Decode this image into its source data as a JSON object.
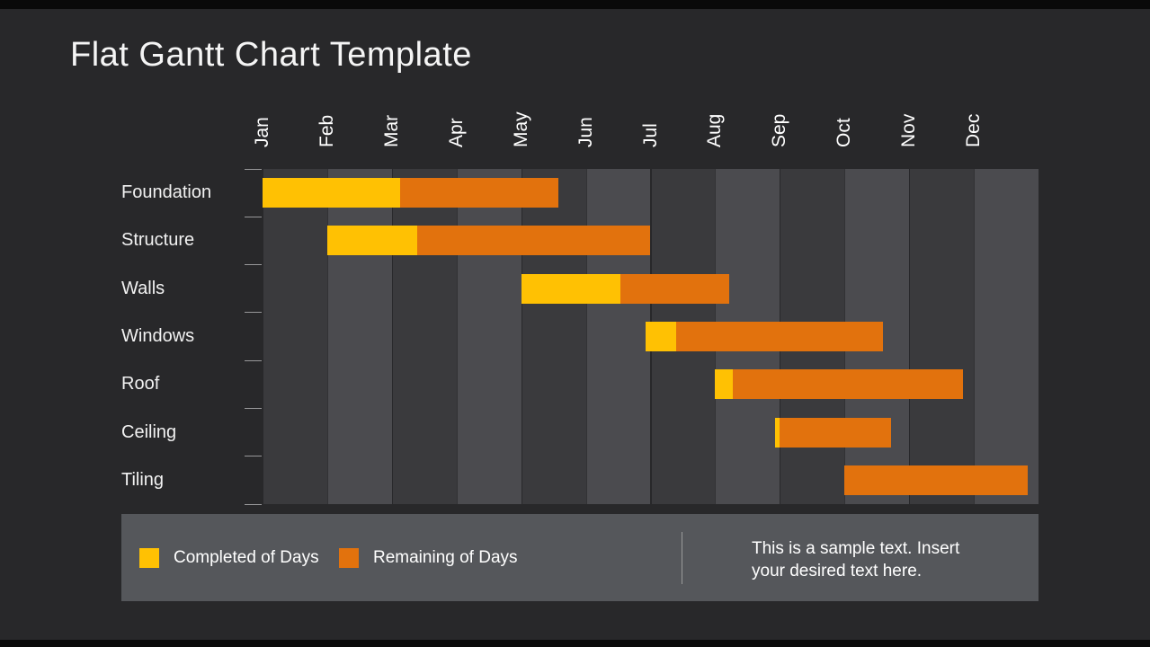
{
  "slide": {
    "title": "Flat Gantt Chart Template"
  },
  "chart_data": {
    "type": "gantt-bar",
    "title": "Flat Gantt Chart Template",
    "x_axis": {
      "unit": "months",
      "range": [
        "Jan",
        "Dec"
      ],
      "gridbands": "alternating"
    },
    "months": [
      "Jan",
      "Feb",
      "Mar",
      "Apr",
      "May",
      "Jun",
      "Jul",
      "Aug",
      "Sep",
      "Oct",
      "Nov",
      "Dec"
    ],
    "tasks": [
      {
        "name": "Foundation",
        "start": 0.0,
        "completed": 2.13,
        "remaining": 2.45
      },
      {
        "name": "Structure",
        "start": 1.0,
        "completed": 1.39,
        "remaining": 3.6
      },
      {
        "name": "Walls",
        "start": 4.0,
        "completed": 1.54,
        "remaining": 1.67
      },
      {
        "name": "Windows",
        "start": 5.93,
        "completed": 0.46,
        "remaining": 3.21
      },
      {
        "name": "Roof",
        "start": 7.0,
        "completed": 0.27,
        "remaining": 3.56
      },
      {
        "name": "Ceiling",
        "start": 7.92,
        "completed": 0.08,
        "remaining": 1.72
      },
      {
        "name": "Tiling",
        "start": 9.0,
        "completed": 0.0,
        "remaining": 2.84
      }
    ],
    "colors": {
      "completed": "#FFC103",
      "remaining": "#E2720D"
    },
    "legend_position": "bottom"
  },
  "legend": {
    "completed_label": "Completed  of Days",
    "remaining_label": "Remaining  of Days"
  },
  "note": {
    "line1": "This is a sample  text. Insert",
    "line2": "your desired text here."
  }
}
